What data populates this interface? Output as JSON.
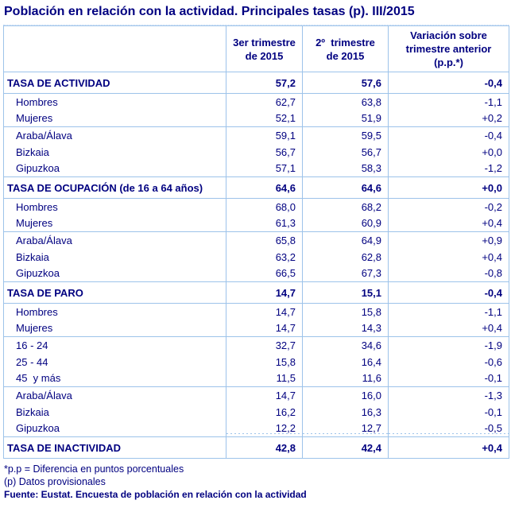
{
  "title": "Población en relación con la actividad. Principales tasas (p). III/2015",
  "colors": {
    "text_navy": "#000080",
    "border_blue": "#9DC3EA"
  },
  "table": {
    "columns": [
      "3er trimestre\nde 2015",
      "2º  trimestre\nde 2015",
      "Variación sobre\ntrimestre anterior\n(p.p.*)"
    ],
    "rows": [
      {
        "label": "TASA DE ACTIVIDAD",
        "q3": "57,2",
        "q2": "57,6",
        "variation": "-0,4",
        "section": true,
        "group_end": true
      },
      {
        "label": "Hombres",
        "q3": "62,7",
        "q2": "63,8",
        "variation": "-1,1"
      },
      {
        "label": "Mujeres",
        "q3": "52,1",
        "q2": "51,9",
        "variation": "+0,2",
        "group_end": true
      },
      {
        "label": "Araba/Álava",
        "q3": "59,1",
        "q2": "59,5",
        "variation": "-0,4"
      },
      {
        "label": "Bizkaia",
        "q3": "56,7",
        "q2": "56,7",
        "variation": "+0,0"
      },
      {
        "label": "Gipuzkoa",
        "q3": "57,1",
        "q2": "58,3",
        "variation": "-1,2",
        "group_end": true
      },
      {
        "label": "TASA DE OCUPACIÓN (de 16 a 64 años)",
        "q3": "64,6",
        "q2": "64,6",
        "variation": "+0,0",
        "section": true,
        "group_end": true
      },
      {
        "label": "Hombres",
        "q3": "68,0",
        "q2": "68,2",
        "variation": "-0,2"
      },
      {
        "label": "Mujeres",
        "q3": "61,3",
        "q2": "60,9",
        "variation": "+0,4",
        "group_end": true
      },
      {
        "label": "Araba/Álava",
        "q3": "65,8",
        "q2": "64,9",
        "variation": "+0,9"
      },
      {
        "label": "Bizkaia",
        "q3": "63,2",
        "q2": "62,8",
        "variation": "+0,4"
      },
      {
        "label": "Gipuzkoa",
        "q3": "66,5",
        "q2": "67,3",
        "variation": "-0,8",
        "group_end": true
      },
      {
        "label": "TASA DE PARO",
        "q3": "14,7",
        "q2": "15,1",
        "variation": "-0,4",
        "section": true,
        "group_end": true
      },
      {
        "label": "Hombres",
        "q3": "14,7",
        "q2": "15,8",
        "variation": "-1,1"
      },
      {
        "label": "Mujeres",
        "q3": "14,7",
        "q2": "14,3",
        "variation": "+0,4",
        "group_end": true
      },
      {
        "label": "16 - 24",
        "q3": "32,7",
        "q2": "34,6",
        "variation": "-1,9"
      },
      {
        "label": "25 - 44",
        "q3": "15,8",
        "q2": "16,4",
        "variation": "-0,6"
      },
      {
        "label": "45  y más",
        "q3": "11,5",
        "q2": "11,6",
        "variation": "-0,1",
        "group_end": true
      },
      {
        "label": "Araba/Álava",
        "q3": "14,7",
        "q2": "16,0",
        "variation": "-1,3"
      },
      {
        "label": "Bizkaia",
        "q3": "16,2",
        "q2": "16,3",
        "variation": "-0,1"
      },
      {
        "label": "Gipuzkoa",
        "q3": "12,2",
        "q2": "12,7",
        "variation": "-0,5",
        "group_end": true,
        "dotted": true
      },
      {
        "label": "TASA DE INACTIVIDAD",
        "q3": "42,8",
        "q2": "42,4",
        "variation": "+0,4",
        "section": true
      }
    ]
  },
  "footnotes": [
    "*p.p = Diferencia en puntos porcentuales",
    "(p) Datos provisionales",
    "Fuente: Eustat. Encuesta de población en relación con la actividad"
  ]
}
